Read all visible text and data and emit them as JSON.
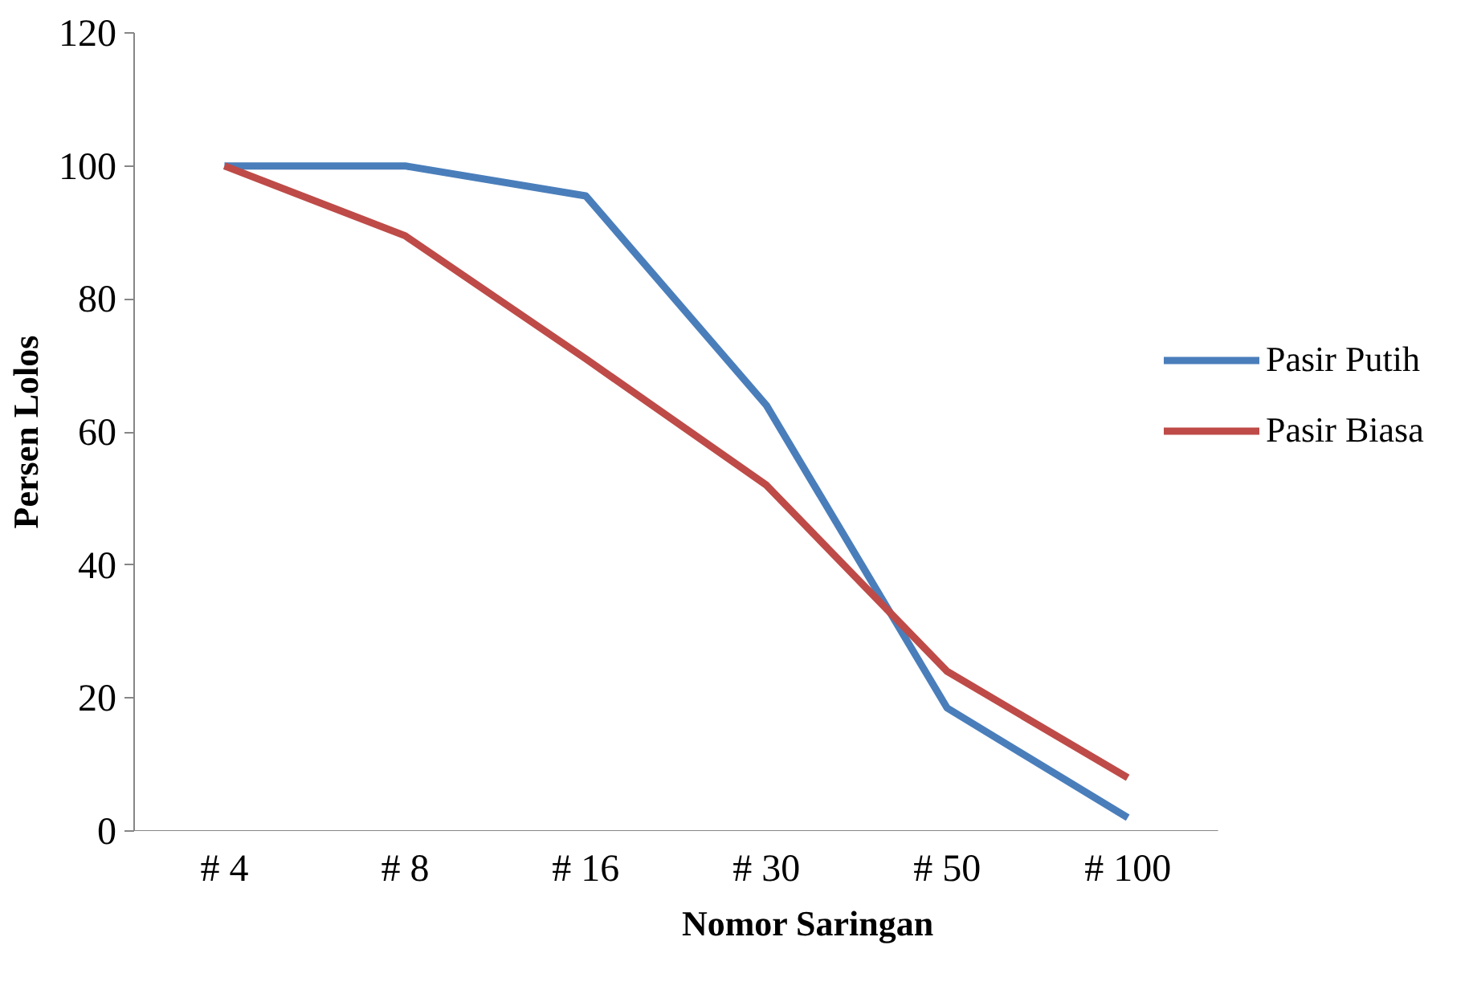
{
  "chart_data": {
    "type": "line",
    "xlabel": "Nomor Saringan",
    "ylabel": "Persen Lolos",
    "categories": [
      "# 4",
      "# 8",
      "# 16",
      "# 30",
      "# 50",
      "# 100"
    ],
    "series": [
      {
        "name": "Pasir Putih",
        "color": "#4a7ebb",
        "values": [
          100,
          100,
          95.5,
          64,
          18.5,
          2
        ]
      },
      {
        "name": "Pasir Biasa",
        "color": "#be4b48",
        "values": [
          100,
          89.5,
          71,
          52,
          24,
          8
        ]
      }
    ],
    "ylim": [
      0,
      120
    ],
    "yticks": [
      0,
      20,
      40,
      60,
      80,
      100,
      120
    ],
    "grid": false,
    "legend": "right",
    "marker": "none",
    "line_style": "solid"
  }
}
